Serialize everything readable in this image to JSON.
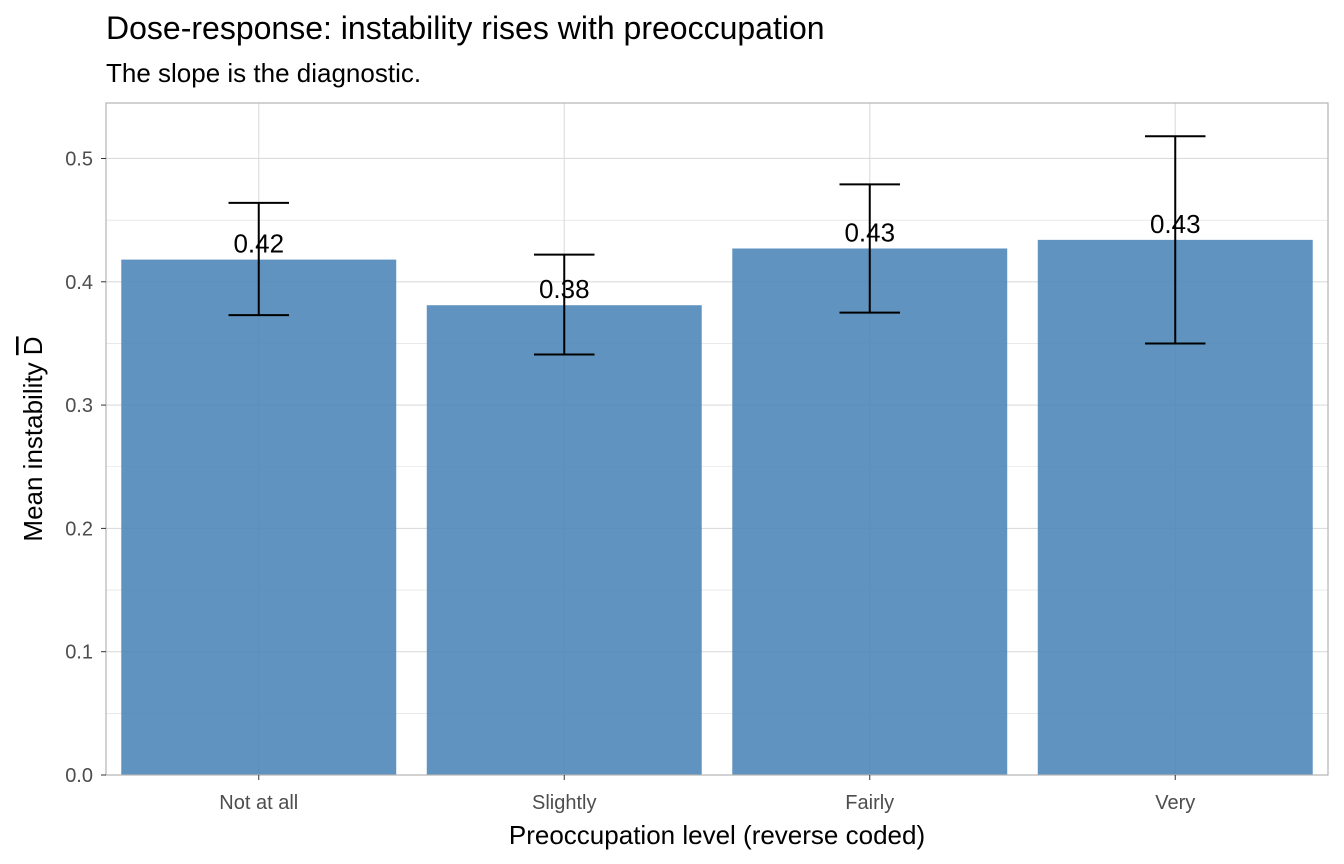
{
  "chart_data": {
    "type": "bar",
    "title": "Dose-response: instability rises with preoccupation",
    "subtitle": "The slope is the diagnostic.",
    "xlabel": "Preoccupation level (reverse coded)",
    "ylabel": "Mean instability D",
    "ylabel_overline_char": "D",
    "categories": [
      "Not at all",
      "Slightly",
      "Fairly",
      "Very"
    ],
    "values": [
      0.418,
      0.381,
      0.427,
      0.434
    ],
    "data_labels": [
      "0.42",
      "0.38",
      "0.43",
      "0.43"
    ],
    "error_low": [
      0.373,
      0.341,
      0.375,
      0.35
    ],
    "error_high": [
      0.464,
      0.422,
      0.479,
      0.518
    ],
    "ylim": [
      0.0,
      0.545
    ],
    "yticks": [
      0.0,
      0.1,
      0.2,
      0.3,
      0.4,
      0.5
    ],
    "ytick_labels": [
      "0.0",
      "0.1",
      "0.2",
      "0.3",
      "0.4",
      "0.5"
    ],
    "grid": true,
    "bar_color": "#4f87b8",
    "errorbar_color": "#000000",
    "grid_color": "#dcdcdc",
    "panel_border_color": "#b3b3b3"
  }
}
